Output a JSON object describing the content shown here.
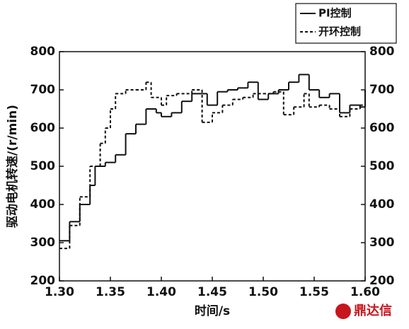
{
  "chart_data": {
    "type": "step-line",
    "xlabel": "时间/s",
    "ylabel": "驱动电机转速/(r/min)",
    "xlim": [
      1.3,
      1.6
    ],
    "xticks": [
      {
        "value": 1.3,
        "label": "1.30"
      },
      {
        "value": 1.35,
        "label": "1.35"
      },
      {
        "value": 1.4,
        "label": "1.40"
      },
      {
        "value": 1.45,
        "label": "1.45"
      },
      {
        "value": 1.5,
        "label": "1.50"
      },
      {
        "value": 1.55,
        "label": "1.55"
      },
      {
        "value": 1.6,
        "label": "1.60"
      }
    ],
    "ylim": [
      200,
      800
    ],
    "yticks": [
      200,
      300,
      400,
      500,
      600,
      700,
      800
    ],
    "y2lim": [
      200,
      800
    ],
    "y2ticks": [
      200,
      300,
      400,
      500,
      600,
      700,
      800
    ],
    "legend": "top-right",
    "series": [
      {
        "name": "PI控制",
        "color": "#111111",
        "dash": "solid",
        "x": [
          1.3,
          1.31,
          1.32,
          1.33,
          1.335,
          1.345,
          1.355,
          1.365,
          1.375,
          1.385,
          1.395,
          1.4,
          1.41,
          1.42,
          1.43,
          1.44,
          1.445,
          1.455,
          1.465,
          1.475,
          1.485,
          1.495,
          1.505,
          1.515,
          1.525,
          1.535,
          1.545,
          1.555,
          1.565,
          1.575,
          1.585,
          1.595,
          1.6
        ],
        "values": [
          305,
          355,
          400,
          450,
          500,
          510,
          530,
          585,
          610,
          650,
          640,
          630,
          640,
          670,
          690,
          690,
          660,
          695,
          700,
          705,
          720,
          675,
          690,
          700,
          720,
          740,
          700,
          680,
          690,
          640,
          660,
          655,
          700
        ]
      },
      {
        "name": "开环控制",
        "color": "#111111",
        "dash": "dashed",
        "x": [
          1.3,
          1.31,
          1.32,
          1.33,
          1.34,
          1.345,
          1.35,
          1.355,
          1.365,
          1.375,
          1.385,
          1.39,
          1.4,
          1.405,
          1.415,
          1.43,
          1.44,
          1.45,
          1.46,
          1.47,
          1.48,
          1.49,
          1.5,
          1.51,
          1.52,
          1.53,
          1.54,
          1.545,
          1.555,
          1.565,
          1.575,
          1.585,
          1.595
        ],
        "values": [
          285,
          345,
          420,
          500,
          560,
          600,
          650,
          690,
          700,
          700,
          720,
          680,
          660,
          685,
          690,
          700,
          615,
          640,
          660,
          675,
          680,
          690,
          690,
          695,
          635,
          655,
          690,
          655,
          660,
          650,
          630,
          650,
          660
        ]
      }
    ]
  },
  "watermark": "鼎达信"
}
